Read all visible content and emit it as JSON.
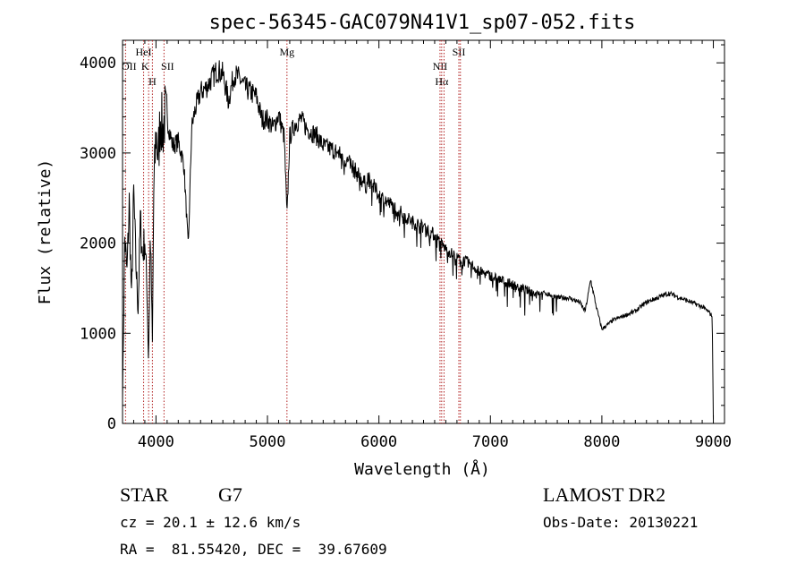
{
  "chart_data": {
    "type": "line",
    "title": "spec-56345-GAC079N41V1_sp07-052.fits",
    "xlabel": "Wavelength (Å)",
    "ylabel": "Flux (relative)",
    "xlim": [
      3700,
      9100
    ],
    "ylim": [
      0,
      4250
    ],
    "x_ticks": [
      4000,
      5000,
      6000,
      7000,
      8000,
      9000
    ],
    "x_tick_labels": [
      "4000",
      "5000",
      "6000",
      "7000",
      "8000",
      "9000"
    ],
    "y_ticks": [
      0,
      1000,
      2000,
      3000,
      4000
    ],
    "y_tick_labels": [
      "0",
      "1000",
      "2000",
      "3000",
      "4000"
    ],
    "grid": false,
    "line_color": "#000000",
    "marker_color": "#b22222",
    "series": [
      {
        "x": [
          3700,
          3720,
          3740,
          3760,
          3780,
          3800,
          3820,
          3840,
          3860,
          3880,
          3900,
          3920,
          3933,
          3950,
          3968,
          3980,
          4000,
          4020,
          4040,
          4060,
          4080,
          4100,
          4150,
          4200,
          4250,
          4290,
          4320,
          4350,
          4400,
          4450,
          4500,
          4550,
          4600,
          4650,
          4700,
          4750,
          4800,
          4850,
          4900,
          4950,
          5000,
          5050,
          5100,
          5150,
          5175,
          5200,
          5250,
          5300,
          5350,
          5400,
          5450,
          5500,
          5600,
          5700,
          5800,
          5890,
          5900,
          6000,
          6100,
          6200,
          6300,
          6400,
          6500,
          6563,
          6600,
          6700,
          6800,
          6900,
          7000,
          7100,
          7200,
          7300,
          7400,
          7500,
          7600,
          7700,
          7800,
          7850,
          7900,
          7950,
          8000,
          8050,
          8100,
          8200,
          8300,
          8400,
          8500,
          8600,
          8700,
          8800,
          8900,
          8950,
          8990,
          9000
        ],
        "y": [
          300,
          2100,
          1700,
          2500,
          1400,
          2600,
          1800,
          1300,
          2300,
          1900,
          2100,
          1500,
          700,
          2200,
          900,
          2600,
          3300,
          3000,
          3500,
          3300,
          3500,
          3400,
          3100,
          3150,
          2900,
          1950,
          3300,
          3500,
          3700,
          3750,
          3850,
          3950,
          3900,
          3600,
          3900,
          3850,
          3750,
          3700,
          3650,
          3400,
          3400,
          3300,
          3450,
          3200,
          2300,
          3200,
          3350,
          3400,
          3300,
          3250,
          3200,
          3100,
          3050,
          2950,
          2800,
          2650,
          2750,
          2550,
          2450,
          2350,
          2250,
          2200,
          2100,
          2000,
          1950,
          1850,
          1800,
          1700,
          1650,
          1600,
          1550,
          1500,
          1450,
          1450,
          1400,
          1400,
          1350,
          1250,
          1600,
          1300,
          1050,
          1100,
          1150,
          1200,
          1250,
          1350,
          1400,
          1450,
          1400,
          1350,
          1300,
          1250,
          1200,
          50
        ]
      }
    ],
    "lines": [
      {
        "x": 3727,
        "label": "OII",
        "row": 2,
        "dx": 4
      },
      {
        "x": 3889,
        "label": "HeI",
        "row": 1,
        "dx": 0
      },
      {
        "x": 3934,
        "label": "K",
        "row": 2,
        "dx": -4
      },
      {
        "x": 3968,
        "label": "H",
        "row": 3,
        "dx": 0
      },
      {
        "x": 4072,
        "label": "SII",
        "row": 2,
        "dx": 4
      },
      {
        "x": 5175,
        "label": "Mg",
        "row": 1,
        "dx": 0
      },
      {
        "x": 6548,
        "label": "NII",
        "row": 2,
        "dx": 0
      },
      {
        "x": 6563,
        "label": "Hα",
        "row": 3,
        "dx": 0
      },
      {
        "x": 6584,
        "label": "",
        "row": 0,
        "dx": 0
      },
      {
        "x": 6717,
        "label": "SII",
        "row": 1,
        "dx": 0
      },
      {
        "x": 6731,
        "label": "",
        "row": 0,
        "dx": 0
      }
    ]
  },
  "info": {
    "class": "STAR",
    "subclass": "G7",
    "survey": "LAMOST DR2",
    "cz": "cz = 20.1 ± 12.6 km/s",
    "obs_date": "Obs-Date: 20130221",
    "radec": "RA =  81.55420, DEC =  39.67609"
  }
}
